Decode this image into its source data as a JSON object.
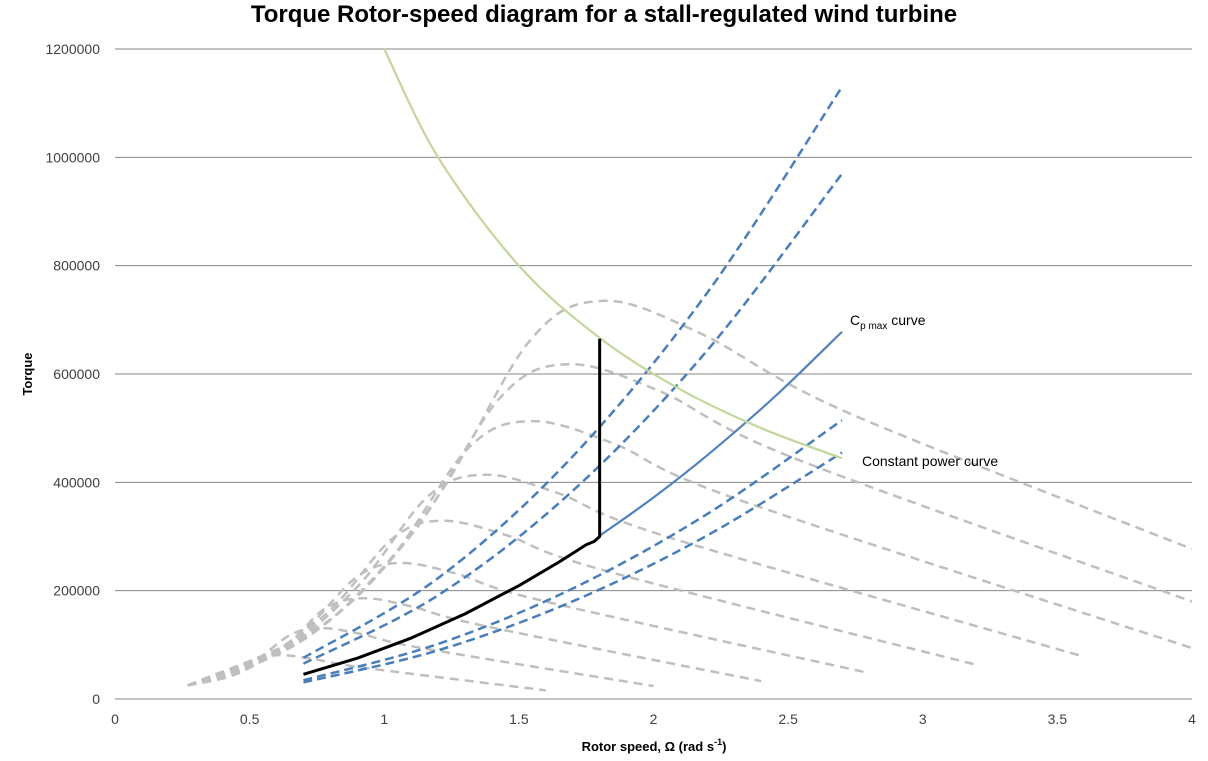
{
  "chart_data": {
    "type": "line",
    "title": "Torque Rotor-speed diagram for a stall-regulated wind turbine",
    "xlabel": "Rotor speed,  Ω (rad s-1)",
    "xlabel_parts": {
      "main": "Rotor speed,  Ω (rad s",
      "sup": "-1",
      "close": ")"
    },
    "ylabel": "Torque",
    "xlim": [
      0,
      4
    ],
    "ylim": [
      0,
      1200000
    ],
    "x_ticks": [
      0,
      0.5,
      1,
      1.5,
      2,
      2.5,
      3,
      3.5,
      4
    ],
    "x_tick_labels": [
      "0",
      "0.5",
      "1",
      "1.5",
      "2",
      "2.5",
      "3",
      "3.5",
      "4"
    ],
    "y_ticks": [
      0,
      200000,
      400000,
      600000,
      800000,
      1000000,
      1200000
    ],
    "y_tick_labels": [
      "0",
      "200000",
      "400000",
      "600000",
      "800000",
      "1000000",
      "1200000"
    ],
    "grid": "horizontal",
    "colors": {
      "gray": "#bfbfbf",
      "blue": "#4f81bd",
      "blue_dashed": "#4a7ebb",
      "green": "#c3d69b",
      "black": "#000000",
      "grid": "#868686"
    },
    "annotations": [
      {
        "text_main": "C",
        "text_sub": "p max",
        "text_rest": " curve",
        "full": "Cp max curve"
      },
      {
        "full": "Constant power curve"
      }
    ],
    "series": [
      {
        "name": "wind-speed-curve-1",
        "style": "gray-dashed",
        "points": [
          [
            0.27,
            25000
          ],
          [
            0.4,
            40500
          ],
          [
            0.52,
            73000
          ],
          [
            0.61,
            81000
          ],
          [
            0.73,
            74500
          ],
          [
            0.92,
            58000
          ],
          [
            1.6,
            16000
          ]
        ]
      },
      {
        "name": "wind-speed-curve-2",
        "style": "gray-dashed",
        "points": [
          [
            0.27,
            25000
          ],
          [
            0.5,
            65500
          ],
          [
            0.65,
            118000
          ],
          [
            0.76,
            131000
          ],
          [
            0.91,
            120500
          ],
          [
            1.14,
            94000
          ],
          [
            2.0,
            24000
          ]
        ]
      },
      {
        "name": "wind-speed-curve-3",
        "style": "gray-dashed",
        "points": [
          [
            0.27,
            25000
          ],
          [
            0.61,
            93000
          ],
          [
            0.78,
            167000
          ],
          [
            0.92,
            186000
          ],
          [
            1.1,
            171000
          ],
          [
            1.38,
            134000
          ],
          [
            2.4,
            33000
          ]
        ]
      },
      {
        "name": "wind-speed-curve-4",
        "style": "gray-dashed",
        "points": [
          [
            0.27,
            25000
          ],
          [
            0.47,
            50000
          ],
          [
            0.7,
            125500
          ],
          [
            0.9,
            226000
          ],
          [
            1.06,
            251000
          ],
          [
            1.27,
            231000
          ],
          [
            1.59,
            181000
          ],
          [
            2.8,
            48000
          ]
        ]
      },
      {
        "name": "wind-speed-curve-5",
        "style": "gray-dashed",
        "points": [
          [
            0.27,
            25000
          ],
          [
            0.53,
            66000
          ],
          [
            0.8,
            164500
          ],
          [
            1.03,
            296000
          ],
          [
            1.21,
            329000
          ],
          [
            1.45,
            303000
          ],
          [
            1.82,
            237000
          ],
          [
            3.2,
            63000
          ]
        ]
      },
      {
        "name": "wind-speed-curve-6",
        "style": "gray-dashed",
        "points": [
          [
            0.27,
            25000
          ],
          [
            0.6,
            83000
          ],
          [
            0.9,
            207000
          ],
          [
            1.16,
            373000
          ],
          [
            1.37,
            414000
          ],
          [
            1.64,
            381000
          ],
          [
            2.06,
            298000
          ],
          [
            3.6,
            78000
          ]
        ]
      },
      {
        "name": "wind-speed-curve-7",
        "style": "gray-dashed",
        "points": [
          [
            0.27,
            25000
          ],
          [
            0.68,
            103000
          ],
          [
            1.02,
            256500
          ],
          [
            1.31,
            462000
          ],
          [
            1.54,
            513000
          ],
          [
            1.85,
            472000
          ],
          [
            2.31,
            369000
          ],
          [
            4.0,
            94000
          ]
        ]
      },
      {
        "name": "wind-speed-curve-8",
        "style": "gray-dashed",
        "points": [
          [
            0.27,
            25000
          ],
          [
            0.74,
            124000
          ],
          [
            1.11,
            309000
          ],
          [
            1.43,
            556000
          ],
          [
            1.68,
            618000
          ],
          [
            2.02,
            569000
          ],
          [
            2.52,
            445000
          ],
          [
            4.0,
            180000
          ]
        ]
      },
      {
        "name": "wind-speed-curve-9",
        "style": "gray-dashed",
        "points": [
          [
            0.27,
            25000
          ],
          [
            0.8,
            147000
          ],
          [
            1.19,
            367500
          ],
          [
            1.54,
            661000
          ],
          [
            1.81,
            735000
          ],
          [
            2.17,
            676000
          ],
          [
            2.72,
            529000
          ],
          [
            4.0,
            277000
          ]
        ]
      },
      {
        "name": "blue-dashed-1",
        "style": "blue-dashed",
        "points": [
          [
            0.7,
            75950
          ],
          [
            1.2,
            223200
          ],
          [
            1.7,
            447950
          ],
          [
            2.2,
            750200
          ],
          [
            2.7,
            1129950
          ]
        ]
      },
      {
        "name": "blue-dashed-2",
        "style": "blue-dashed",
        "points": [
          [
            0.7,
            65170
          ],
          [
            1.2,
            191520
          ],
          [
            1.7,
            384370
          ],
          [
            2.2,
            643720
          ],
          [
            2.7,
            969570
          ]
        ]
      },
      {
        "name": "blue-dashed-3",
        "style": "blue-dashed",
        "points": [
          [
            0.7,
            34594
          ],
          [
            1.2,
            101664
          ],
          [
            1.7,
            204034
          ],
          [
            2.2,
            341704
          ],
          [
            2.7,
            514674
          ]
        ]
      },
      {
        "name": "blue-dashed-4",
        "style": "blue-dashed",
        "points": [
          [
            0.7,
            30576
          ],
          [
            1.2,
            89856
          ],
          [
            1.7,
            180336
          ],
          [
            2.2,
            302016
          ],
          [
            2.7,
            454896
          ]
        ]
      },
      {
        "name": "cp-max-curve",
        "style": "blue-solid",
        "points": [
          [
            1.8,
            301320
          ],
          [
            2.0,
            372000
          ],
          [
            2.2,
            450120
          ],
          [
            2.45,
            558000
          ],
          [
            2.7,
            677970
          ]
        ]
      },
      {
        "name": "constant-power-curve",
        "style": "green-solid",
        "points": [
          [
            1.0,
            1200000
          ],
          [
            1.2,
            1000000
          ],
          [
            1.5,
            800000
          ],
          [
            1.8,
            666667
          ],
          [
            2.1,
            571429
          ],
          [
            2.4,
            500000
          ],
          [
            2.7,
            444444
          ]
        ]
      },
      {
        "name": "operating-curve",
        "style": "black-solid",
        "points": [
          [
            0.7,
            45570
          ],
          [
            0.9,
            75330
          ],
          [
            1.1,
            112530
          ],
          [
            1.3,
            157170
          ],
          [
            1.5,
            209250
          ],
          [
            1.65,
            253190
          ],
          [
            1.75,
            284800
          ],
          [
            1.78,
            291000
          ],
          [
            1.8,
            300000
          ],
          [
            1.8,
            665000
          ]
        ]
      }
    ]
  }
}
